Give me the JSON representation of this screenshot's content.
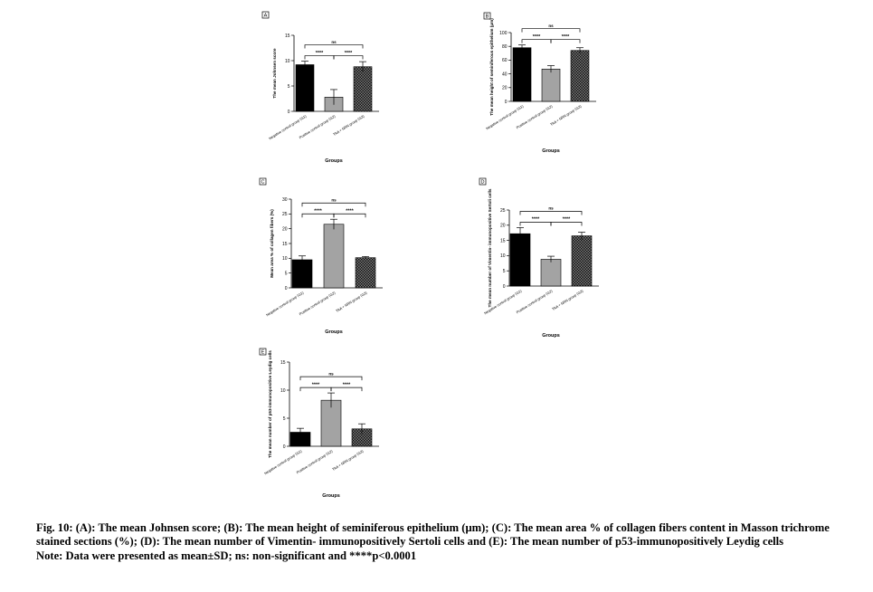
{
  "chart_data": [
    {
      "type": "bar",
      "panel": "A",
      "categories": [
        "Negative control group (G1)",
        "Positive control group (G2)",
        "TAA + NRN group (G3)"
      ],
      "values": [
        9.2,
        2.8,
        8.8
      ],
      "errors": [
        0.7,
        1.5,
        1.0
      ],
      "ylabel": "The mean Johnsen score",
      "xlabel": "Groups",
      "ylim": [
        0,
        15
      ],
      "yticks": [
        0,
        5,
        10,
        15
      ],
      "comparisons": [
        {
          "from": 0,
          "to": 2,
          "label": "ns"
        },
        {
          "from": 0,
          "to": 1,
          "label": "****"
        },
        {
          "from": 1,
          "to": 2,
          "label": "****"
        }
      ]
    },
    {
      "type": "bar",
      "panel": "B",
      "categories": [
        "Negative control group (G1)",
        "Positive control group (G2)",
        "TAA + NRN group (G3)"
      ],
      "values": [
        78,
        47,
        74
      ],
      "errors": [
        4,
        5,
        4
      ],
      "ylabel": "The mean height of seminiferous epithelium (μm)",
      "xlabel": "Groups",
      "ylim": [
        0,
        100
      ],
      "yticks": [
        0,
        20,
        40,
        60,
        80,
        100
      ],
      "comparisons": [
        {
          "from": 0,
          "to": 2,
          "label": "ns"
        },
        {
          "from": 0,
          "to": 1,
          "label": "****"
        },
        {
          "from": 1,
          "to": 2,
          "label": "****"
        }
      ]
    },
    {
      "type": "bar",
      "panel": "C",
      "categories": [
        "Negative control group (G1)",
        "Positive control group (G2)",
        "TAA + NRN group (G3)"
      ],
      "values": [
        9.5,
        21.5,
        10.2
      ],
      "errors": [
        1.3,
        1.7,
        0.4
      ],
      "ylabel": "Mean area % of collagen fibers (%)",
      "xlabel": "Groups",
      "ylim": [
        0,
        30
      ],
      "yticks": [
        0,
        5,
        10,
        15,
        20,
        25,
        30
      ],
      "comparisons": [
        {
          "from": 0,
          "to": 2,
          "label": "ns"
        },
        {
          "from": 0,
          "to": 1,
          "label": "****"
        },
        {
          "from": 1,
          "to": 2,
          "label": "****"
        }
      ]
    },
    {
      "type": "bar",
      "panel": "D",
      "categories": [
        "Negative control group (G1)",
        "Positive control group (G2)",
        "TAA + NRN group (G3)"
      ],
      "values": [
        17.2,
        8.8,
        16.5
      ],
      "errors": [
        2.0,
        1.0,
        1.2
      ],
      "ylabel": "The mean number of Vimentin- immunopositive Sertoli cells",
      "xlabel": "Groups",
      "ylim": [
        0,
        25
      ],
      "yticks": [
        0,
        5,
        10,
        15,
        20,
        25
      ],
      "comparisons": [
        {
          "from": 0,
          "to": 2,
          "label": "ns"
        },
        {
          "from": 0,
          "to": 1,
          "label": "****"
        },
        {
          "from": 1,
          "to": 2,
          "label": "****"
        }
      ]
    },
    {
      "type": "bar",
      "panel": "E",
      "categories": [
        "Negative control group (G1)",
        "Positive control group (G2)",
        "TAA + NRN group (G3)"
      ],
      "values": [
        2.5,
        8.2,
        3.1
      ],
      "errors": [
        0.7,
        1.3,
        0.9
      ],
      "ylabel": "The mean number of p53-immunopositive Leydig cells",
      "xlabel": "Groups",
      "ylim": [
        0,
        15
      ],
      "yticks": [
        0,
        5,
        10,
        15
      ],
      "comparisons": [
        {
          "from": 0,
          "to": 2,
          "label": "ns"
        },
        {
          "from": 0,
          "to": 1,
          "label": "****"
        },
        {
          "from": 1,
          "to": 2,
          "label": "****"
        }
      ]
    }
  ],
  "caption": {
    "line1": "Fig. 10: (A): The mean Johnsen score; (B): The mean height of seminiferous epithelium (μm); (C): The mean area % of collagen fibers content in Masson trichrome stained sections (%); (D): The mean number of Vimentin- immunopositively Sertoli cells and (E): The mean number of p53-immunopositively Leydig cells",
    "line2": "Note: Data were presented as mean±SD; ns: non-significant and ****p<0.0001"
  }
}
